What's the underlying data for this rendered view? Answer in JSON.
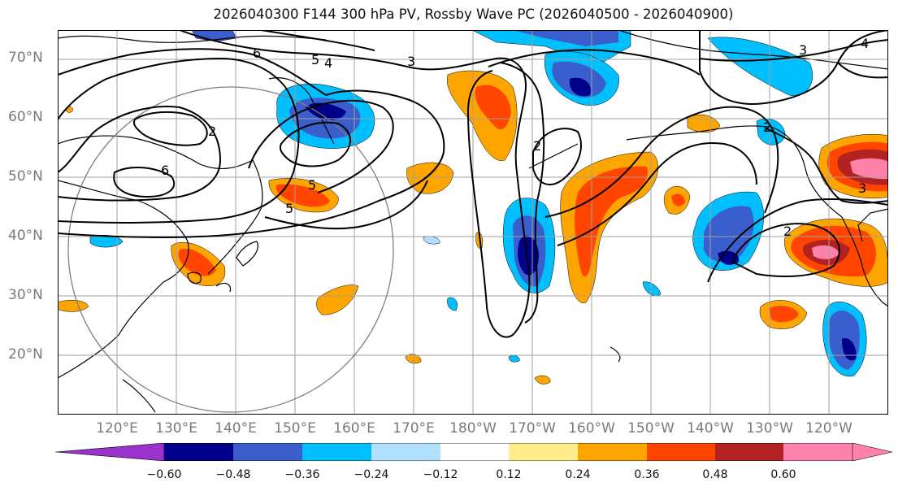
{
  "title": "2026040300 F144 300 hPa PV, Rossby Wave PC (2026040500 - 2026040900)",
  "lat_labels": [
    "70°N",
    "60°N",
    "50°N",
    "40°N",
    "30°N",
    "20°N"
  ],
  "lon_labels": [
    "120°E",
    "130°E",
    "140°E",
    "150°E",
    "160°E",
    "170°E",
    "180°W",
    "170°W",
    "160°W",
    "150°W",
    "140°W",
    "130°W",
    "120°W"
  ],
  "contour_labels": [
    "6",
    "5",
    "4",
    "3",
    "2",
    "6",
    "5",
    "5",
    "2",
    "2",
    "2",
    "3",
    "4",
    "3"
  ],
  "colorbar": {
    "tick_labels": [
      "−0.60",
      "−0.48",
      "−0.36",
      "−0.24",
      "−0.12",
      "0.12",
      "0.24",
      "0.36",
      "0.48",
      "0.60"
    ],
    "colors": [
      "#9933cc",
      "#00008b",
      "#3a5fcd",
      "#00bfff",
      "#b0e2ff",
      "#ffffff",
      "#ffec8b",
      "#ffa500",
      "#ff4500",
      "#b22222",
      "#ff82ab"
    ]
  }
}
